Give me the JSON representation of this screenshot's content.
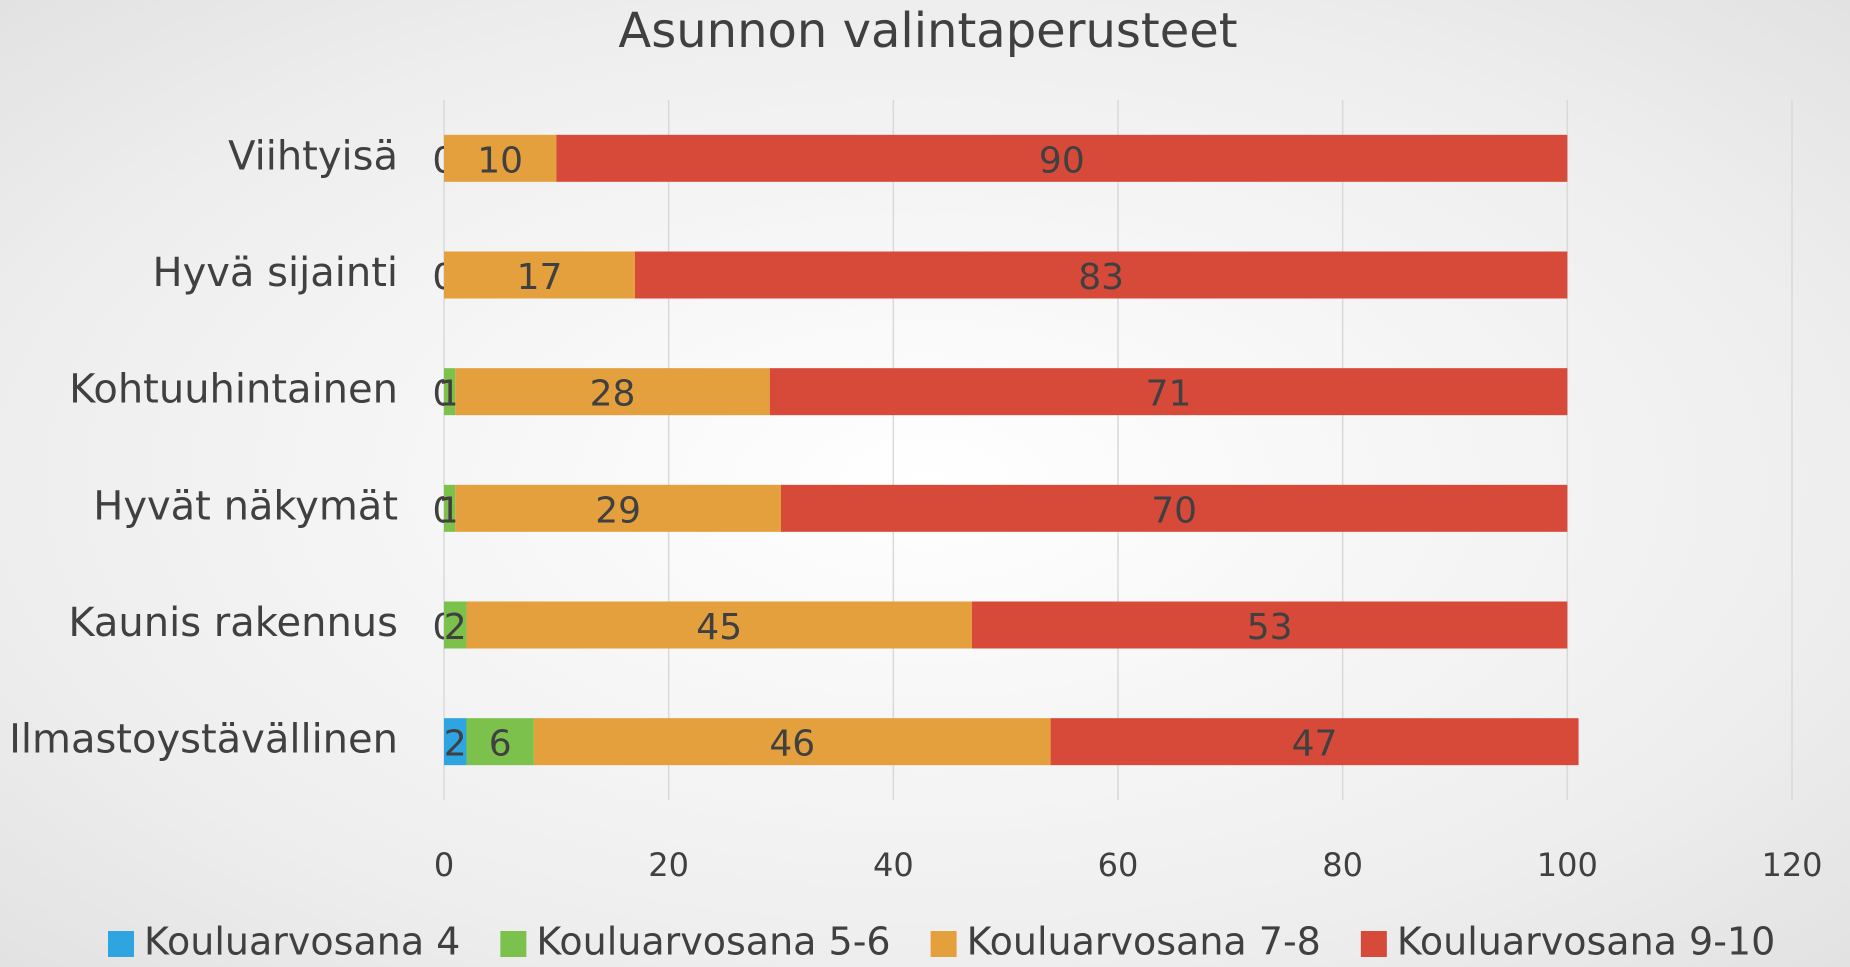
{
  "chart_data": {
    "type": "stacked-bar-horizontal",
    "title": "Asunnon valintaperusteet",
    "categories": [
      "Viihtyisä",
      "Hyvä sijainti",
      "Kohtuuhintainen",
      "Hyvät näkymät",
      "Kaunis rakennus",
      "Ilmastoystävällinen"
    ],
    "series": [
      {
        "name": "Kouluarvosana 4",
        "color": "#2ea5e0",
        "values": [
          0,
          0,
          0,
          0,
          0,
          2
        ]
      },
      {
        "name": "Kouluarvosana 5-6",
        "color": "#7cc14b",
        "values": [
          0,
          0,
          1,
          1,
          2,
          6
        ]
      },
      {
        "name": "Kouluarvosana 7-8",
        "color": "#e3a03d",
        "values": [
          10,
          17,
          28,
          29,
          45,
          46
        ]
      },
      {
        "name": "Kouluarvosana 9-10",
        "color": "#d74a3a",
        "values": [
          90,
          83,
          71,
          70,
          53,
          47
        ]
      }
    ],
    "xlim": [
      0,
      120
    ],
    "xticks": [
      0,
      20,
      40,
      60,
      80,
      100,
      120
    ],
    "grid": true,
    "legend": "bottom"
  }
}
